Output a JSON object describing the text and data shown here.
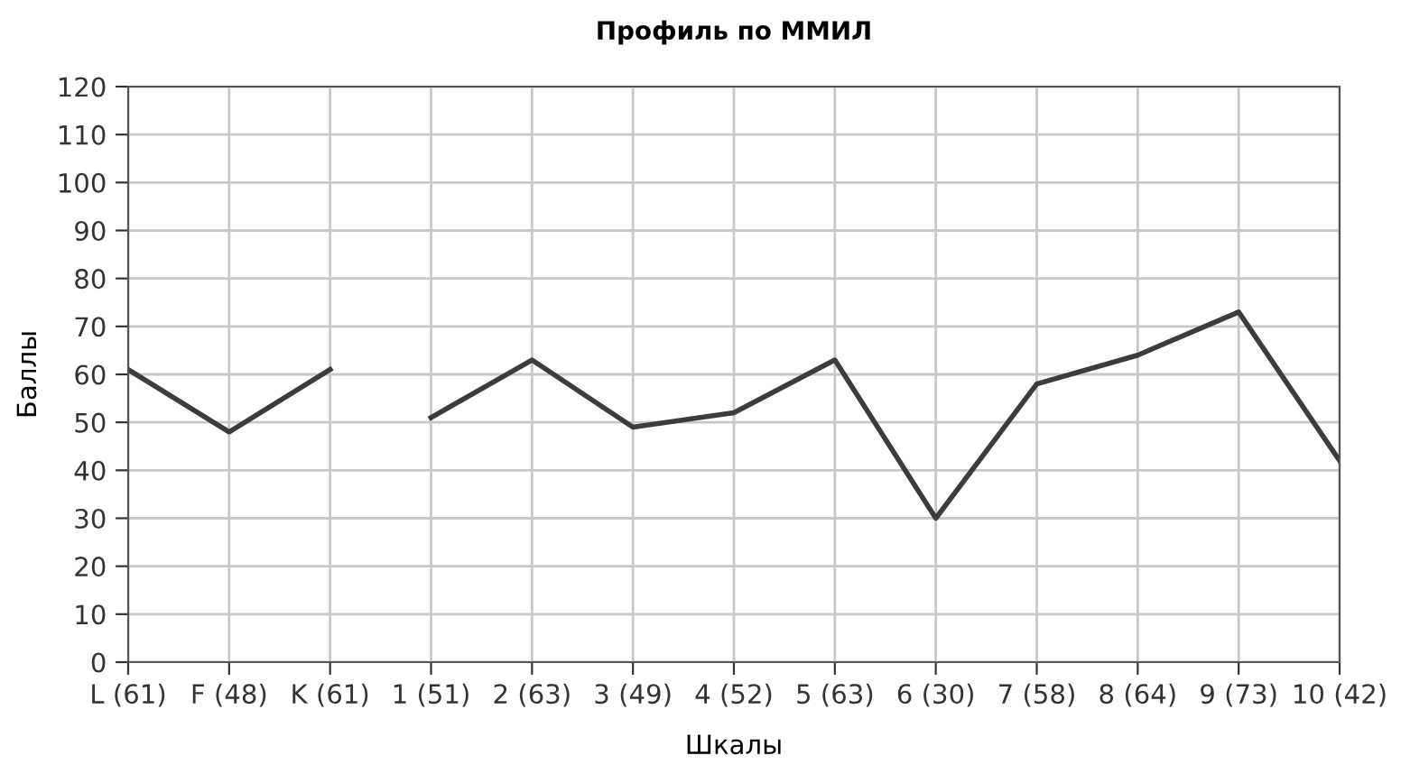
{
  "chart_data": {
    "type": "line",
    "title": "Профиль по ММИЛ",
    "xlabel": "Шкалы",
    "ylabel": "Баллы",
    "categories": [
      "L (61)",
      "F (48)",
      "K (61)",
      "1 (51)",
      "2 (63)",
      "3 (49)",
      "4 (52)",
      "5 (63)",
      "6 (30)",
      "7 (58)",
      "8 (64)",
      "9 (73)",
      "10 (42)"
    ],
    "series": [
      {
        "color": "#3c3c3c",
        "values": [
          61,
          48,
          61,
          null,
          null,
          null,
          null,
          null,
          null,
          null,
          null,
          null,
          null
        ]
      },
      {
        "color": "#3c3c3c",
        "values": [
          null,
          null,
          null,
          51,
          63,
          49,
          52,
          63,
          30,
          58,
          64,
          73,
          42
        ]
      }
    ],
    "ylim": [
      0,
      120
    ],
    "yticks": [
      0,
      10,
      20,
      30,
      40,
      50,
      60,
      70,
      80,
      90,
      100,
      110,
      120
    ],
    "grid": true,
    "marker": "none",
    "line_style": "solid"
  }
}
